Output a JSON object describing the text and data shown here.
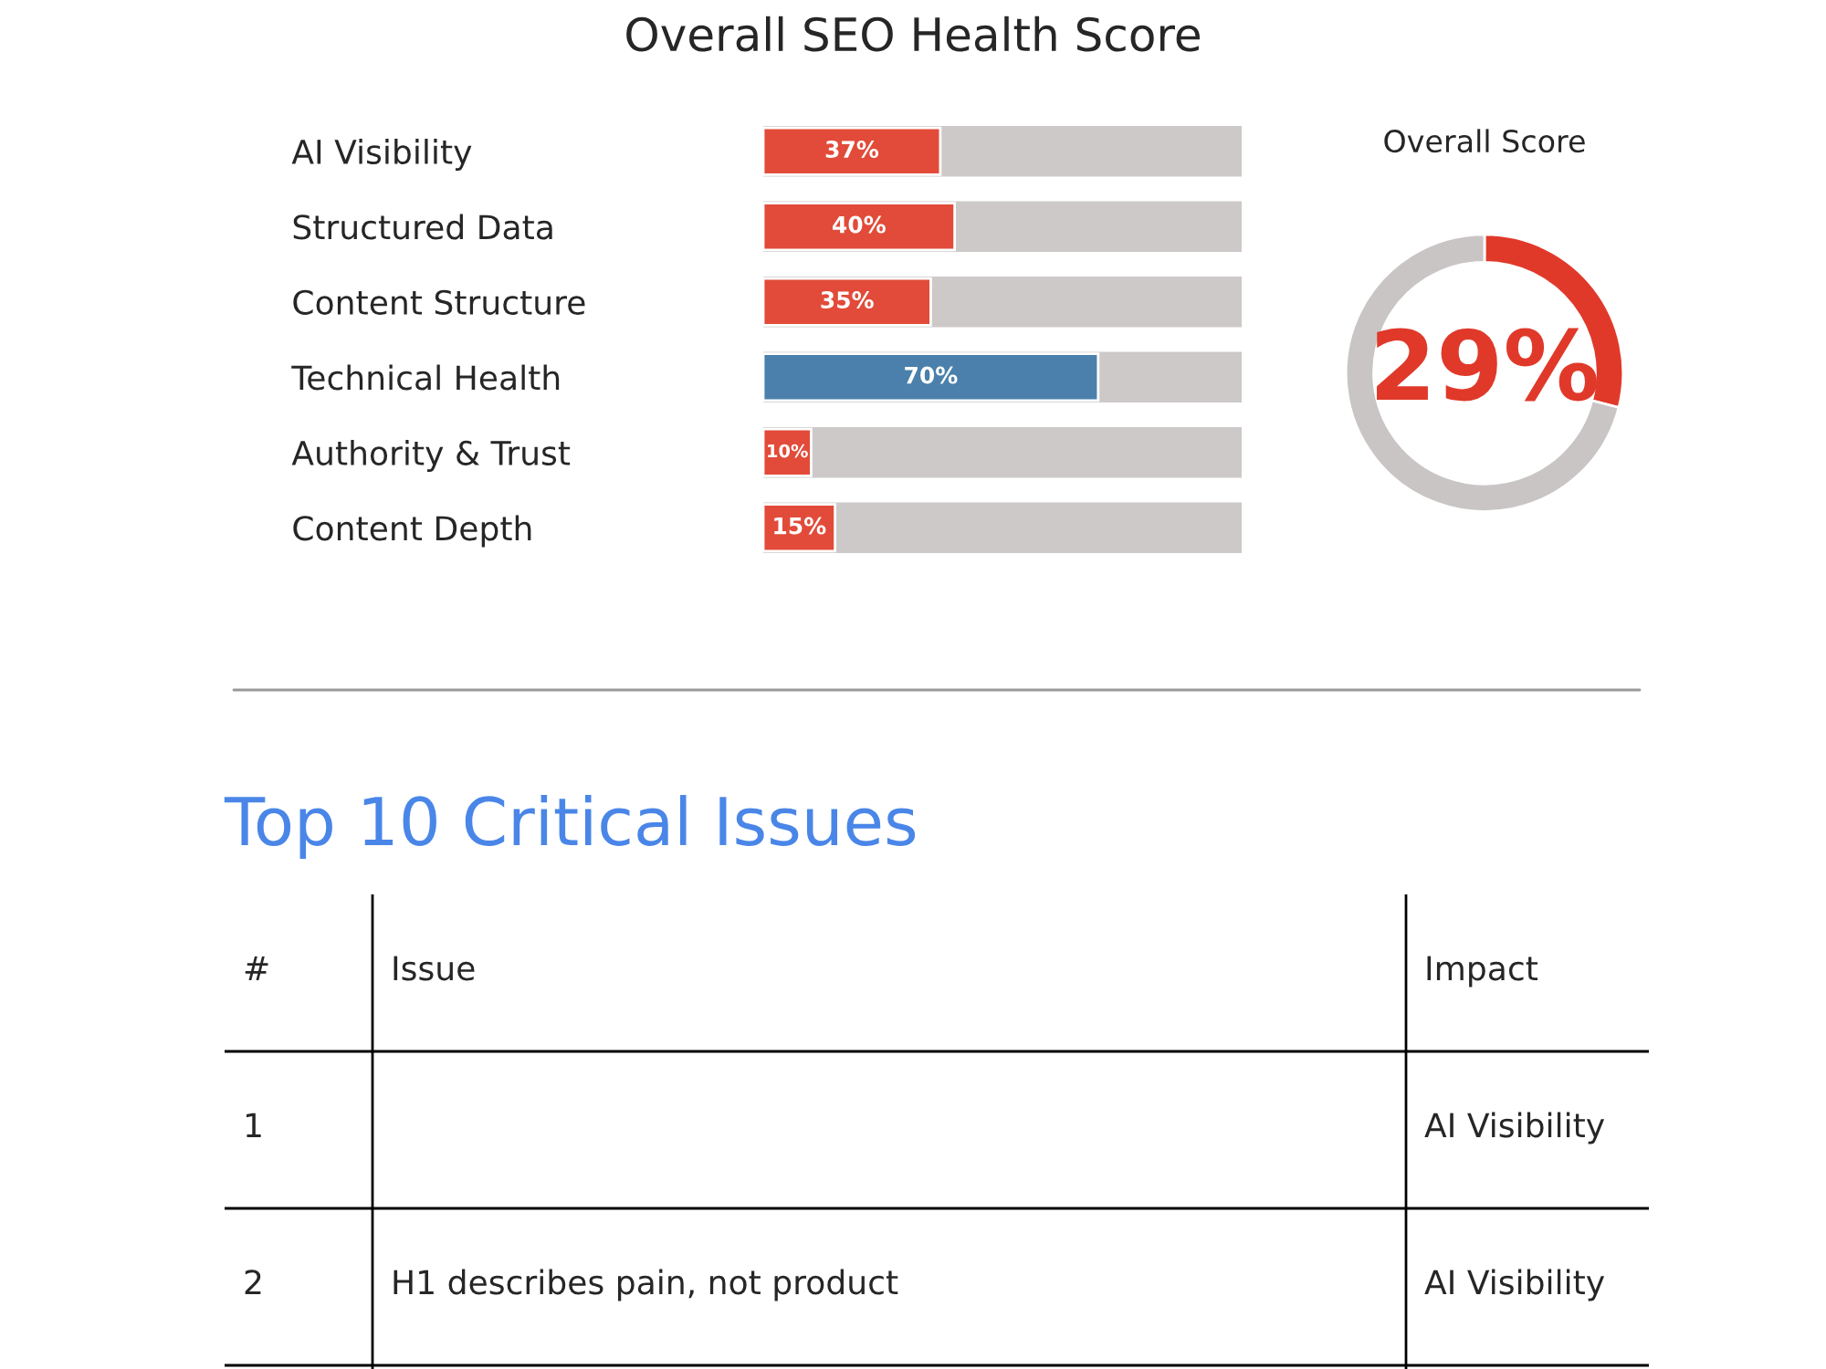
{
  "chart_data": [
    {
      "type": "bar",
      "title": "Overall SEO Health Score",
      "orientation": "horizontal",
      "categories": [
        "AI Visibility",
        "Structured Data",
        "Content Structure",
        "Technical Health",
        "Authority & Trust",
        "Content Depth"
      ],
      "values": [
        37,
        40,
        35,
        70,
        10,
        15
      ],
      "colors": [
        "#e24b39",
        "#e24b39",
        "#e24b39",
        "#4a80ab",
        "#e24b39",
        "#e24b39"
      ],
      "xlim": [
        0,
        100
      ],
      "value_labels": [
        "37%",
        "40%",
        "35%",
        "70%",
        "10%",
        "15%"
      ],
      "tick_labels": "y"
    },
    {
      "type": "donut",
      "title": "Overall Score",
      "categories": [
        null,
        null
      ],
      "values": [
        29,
        71
      ],
      "colors": [
        "#e0392a",
        "#c9c5c5"
      ],
      "value_labels": [
        "29%",
        null
      ]
    },
    {
      "type": "other",
      "title": "Top 10 Critical Issues",
      "annotations": [
        "#",
        "Issue",
        "Impact",
        "1",
        null,
        "AI Visibility",
        "2",
        "H1 describes pain, not product",
        "AI Visibility"
      ]
    }
  ]
}
